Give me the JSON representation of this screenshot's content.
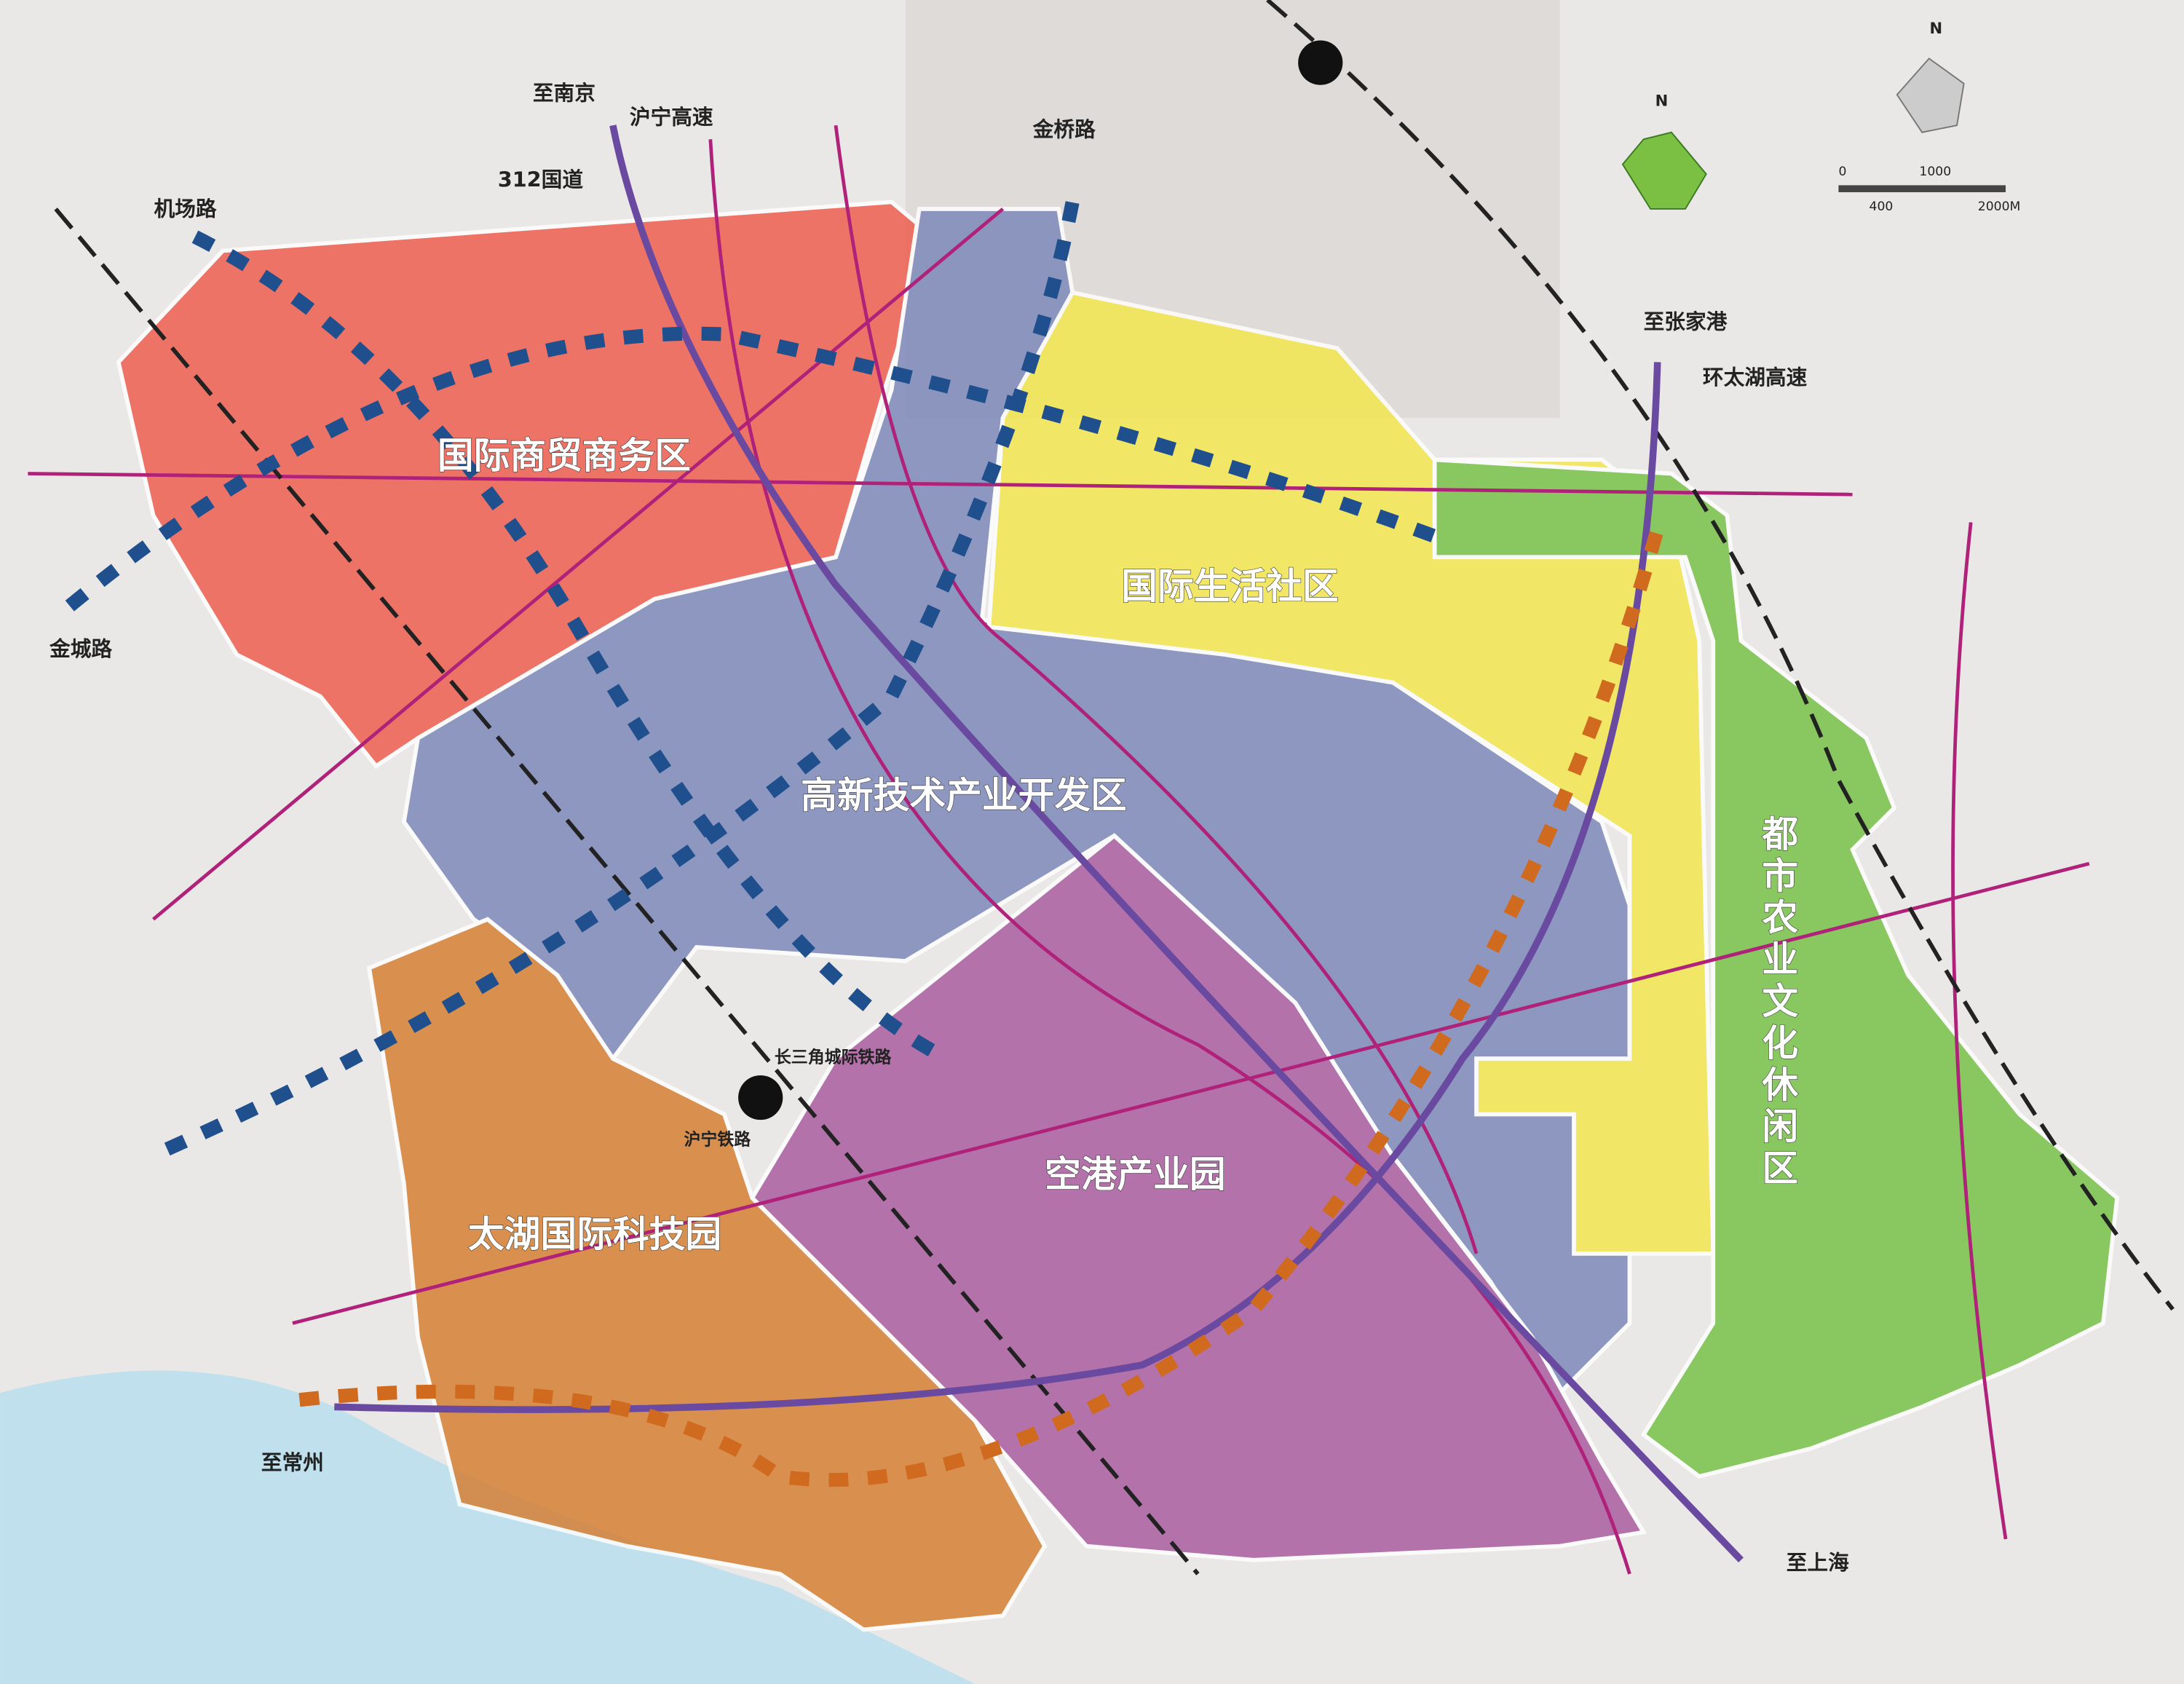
{
  "districts": [
    "国际商贸商务区",
    "国际生活社区",
    "高新技术产业开发区",
    "空港产业园",
    "太湖国际科技园",
    "都市农业文化休闲区"
  ],
  "labels": [
    "至南京",
    "沪宁高速",
    "312国道",
    "机场路",
    "金桥路",
    "金城路",
    "至张家港",
    "环太湖高速",
    "长三角城际铁路",
    "沪宁铁路",
    "至常州",
    "至上海"
  ],
  "compass": {
    "north": "N",
    "inset_north": "N"
  },
  "scale_bar": {
    "ticks": [
      "0",
      "1000",
      "400",
      "2000M"
    ]
  }
}
